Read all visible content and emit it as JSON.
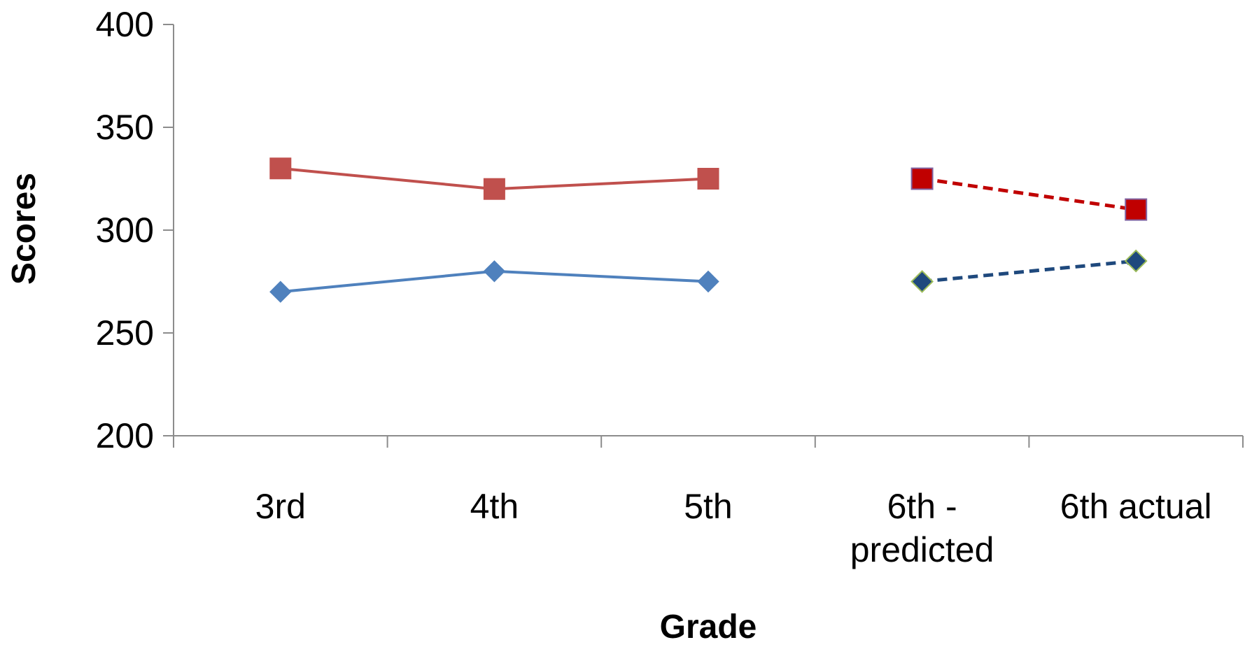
{
  "chart_data": {
    "type": "line",
    "categories": [
      "3rd",
      "4th",
      "5th",
      "6th -\npredicted",
      "6th actual"
    ],
    "xlabel": "Grade",
    "ylabel": "Scores",
    "ylim": [
      200,
      400
    ],
    "yticks": [
      200,
      250,
      300,
      350,
      400
    ],
    "grid": false,
    "legend": "none",
    "series": [
      {
        "marker": "square",
        "color": "#c0504d",
        "values": [
          330,
          320,
          325,
          null,
          null
        ]
      },
      {
        "marker": "diamond",
        "color": "#4f81bd",
        "values": [
          270,
          280,
          275,
          null,
          null
        ]
      },
      {
        "marker": "square",
        "color": "#c00000",
        "line_style": "dashed-arrow",
        "values": [
          null,
          null,
          null,
          325,
          310
        ]
      },
      {
        "marker": "diamond",
        "color": "#1f497d",
        "line_style": "dashed-arrow",
        "values": [
          null,
          null,
          null,
          275,
          285
        ]
      }
    ]
  }
}
